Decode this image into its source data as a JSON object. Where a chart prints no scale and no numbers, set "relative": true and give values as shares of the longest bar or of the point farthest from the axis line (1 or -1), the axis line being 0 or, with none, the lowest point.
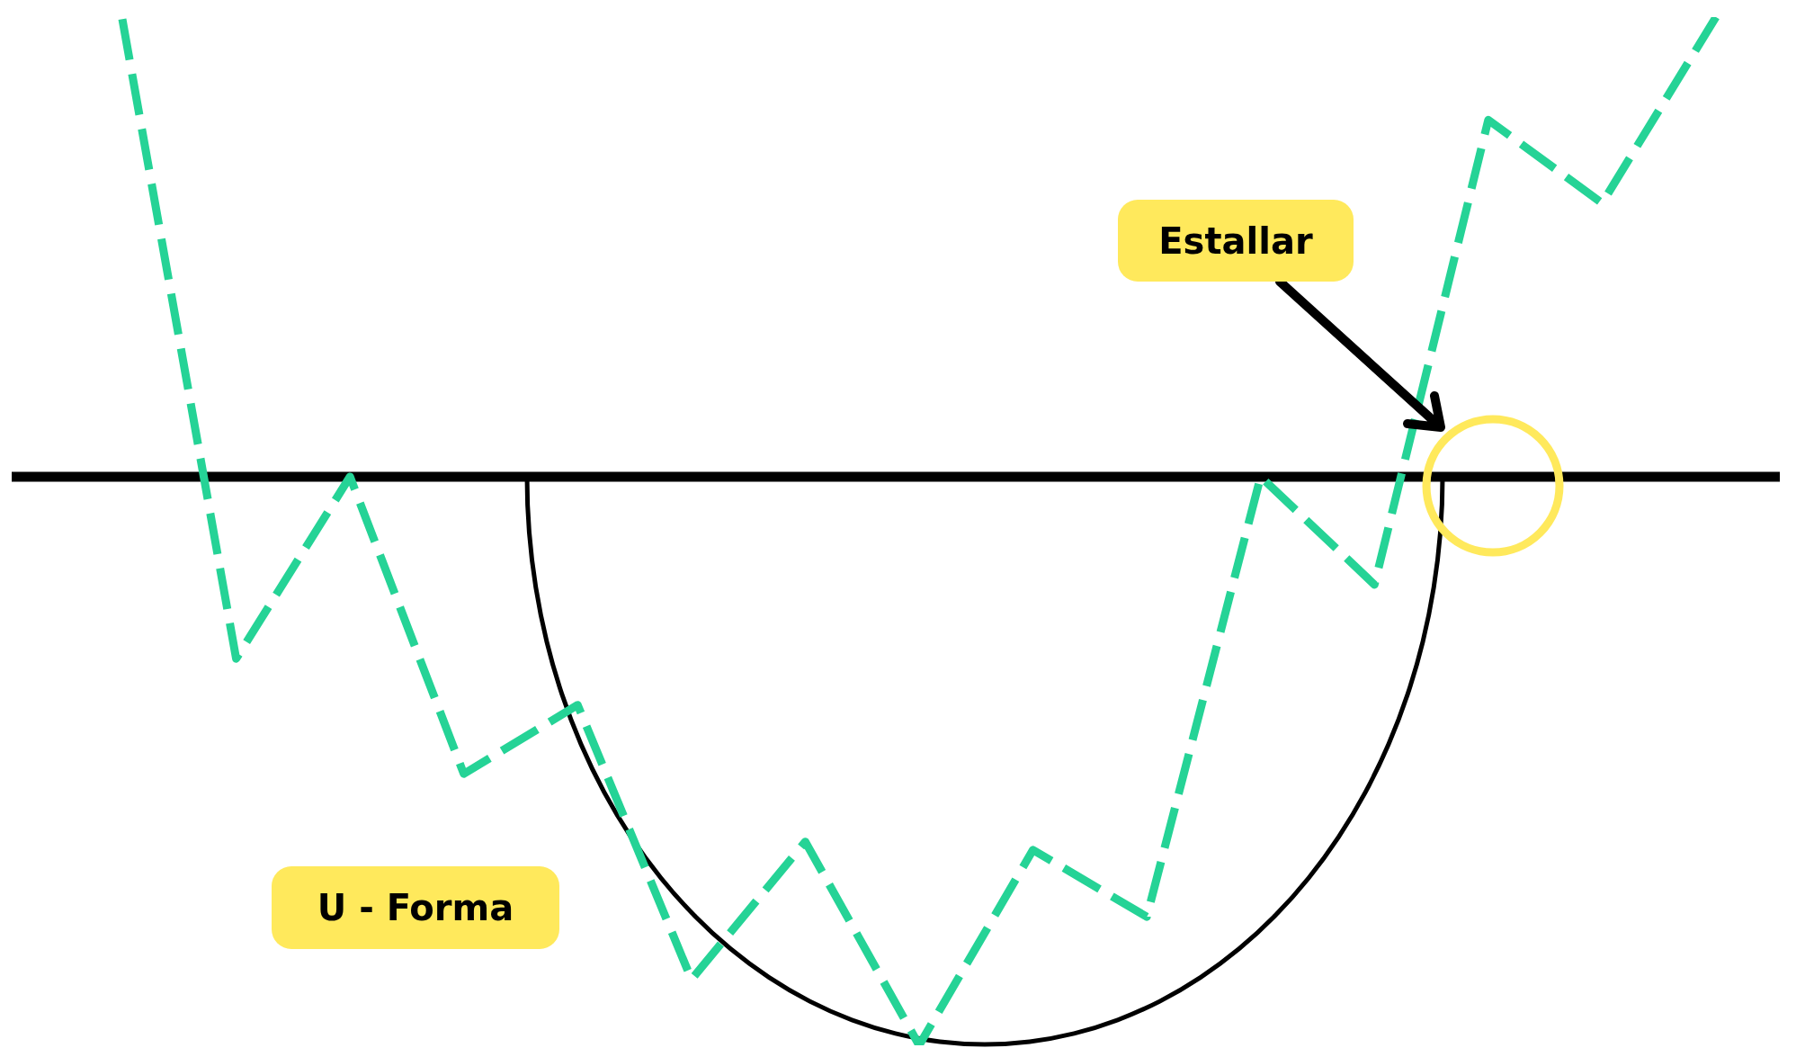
{
  "chart_data": {
    "type": "line",
    "relative": true,
    "categories": [
      null,
      null,
      null,
      null,
      null,
      null,
      null,
      null,
      null,
      null,
      null,
      null,
      null,
      null,
      null
    ],
    "series": [
      {
        "color": "#25d396",
        "values": [
          0.998,
          0.376,
          0.553,
          0.264,
          0.331,
          0.064,
          0.198,
          0,
          0.19,
          0.125,
          0.553,
          0.448,
          0.9,
          0.819,
          1
        ]
      }
    ],
    "line_style": "dashed",
    "marker": "none",
    "ref_lines": [
      {
        "axis": "y",
        "value": 0.553,
        "color": "#000000",
        "line_style": "solid"
      }
    ],
    "annotations": [
      "Estallar",
      "U - Forma"
    ]
  }
}
